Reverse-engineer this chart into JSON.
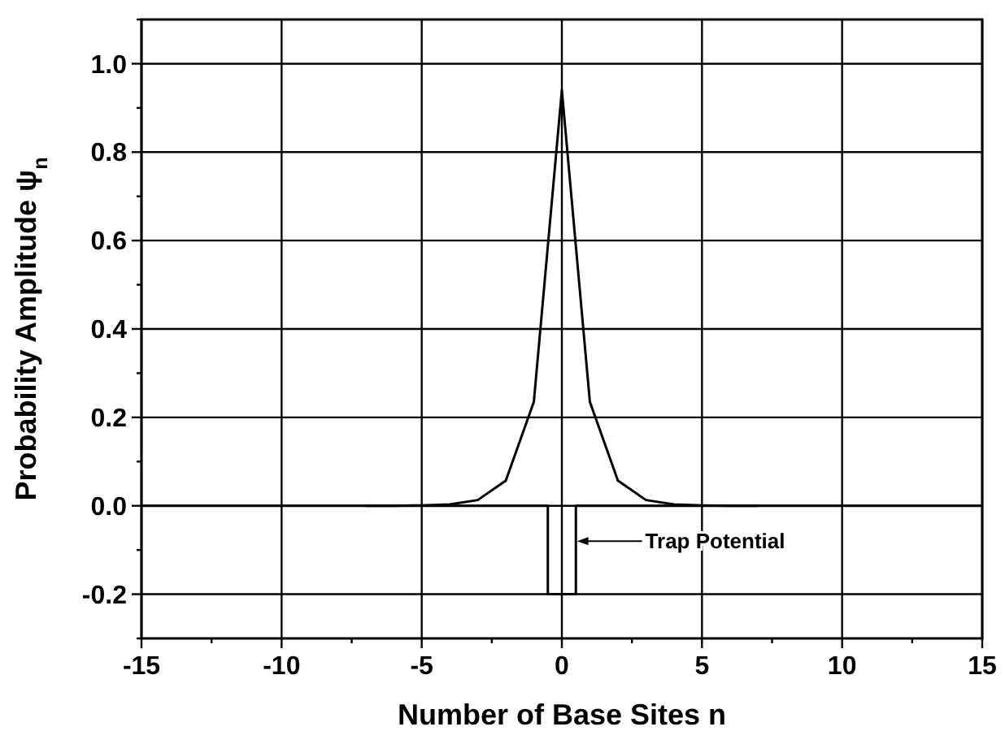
{
  "chart_data": {
    "type": "line",
    "xlabel": "Number of Base Sites n",
    "ylabel": "Probability Amplitude ψ$_{n}$",
    "xlim": [
      -15,
      15
    ],
    "ylim": [
      -0.3,
      1.1
    ],
    "xticks": [
      -15,
      {
        "value": -12.5,
        "label": null
      },
      -10,
      {
        "value": -7.5,
        "label": null
      },
      -5,
      {
        "value": -2.5,
        "label": null
      },
      0,
      {
        "value": 2.5,
        "label": null
      },
      5,
      {
        "value": 7.5,
        "label": null
      },
      10,
      {
        "value": 12.5,
        "label": null
      },
      15
    ],
    "yticks": [
      {
        "value": -0.3,
        "label": null
      },
      "-0.2",
      {
        "value": -0.1,
        "label": null
      },
      {
        "value": 0,
        "label": "0.0"
      },
      {
        "value": 0.1,
        "label": null
      },
      {
        "value": 0.2,
        "label": "0.2"
      },
      {
        "value": 0.3,
        "label": null
      },
      {
        "value": 0.4,
        "label": "0.4"
      },
      {
        "value": 0.5,
        "label": null
      },
      {
        "value": 0.6,
        "label": "0.6"
      },
      {
        "value": 0.7,
        "label": null
      },
      {
        "value": 0.8,
        "label": "0.8"
      },
      {
        "value": 0.9,
        "label": null
      },
      {
        "value": 1.0,
        "label": "1.0"
      },
      {
        "value": 1.1,
        "label": null
      }
    ],
    "grid": true,
    "marker": "none",
    "line_style": "solid",
    "series": [
      {
        "color": "#000000",
        "x": [
          -7,
          -6,
          -5,
          -4,
          -3,
          -2,
          -1,
          0,
          1,
          2,
          3,
          4,
          5,
          6,
          7
        ],
        "values": [
          0,
          0,
          0.001,
          0.003,
          0.013,
          0.057,
          0.235,
          0.94,
          0.235,
          0.057,
          0.013,
          0.003,
          0.001,
          0,
          0
        ]
      },
      {
        "color": "#000000",
        "x": [
          -15,
          -0.5,
          -0.5,
          0.5,
          0.5,
          15
        ],
        "values": [
          0,
          0,
          -0.2,
          -0.2,
          0,
          0
        ]
      }
    ],
    "annotations": [
      "Trap Potential"
    ]
  }
}
